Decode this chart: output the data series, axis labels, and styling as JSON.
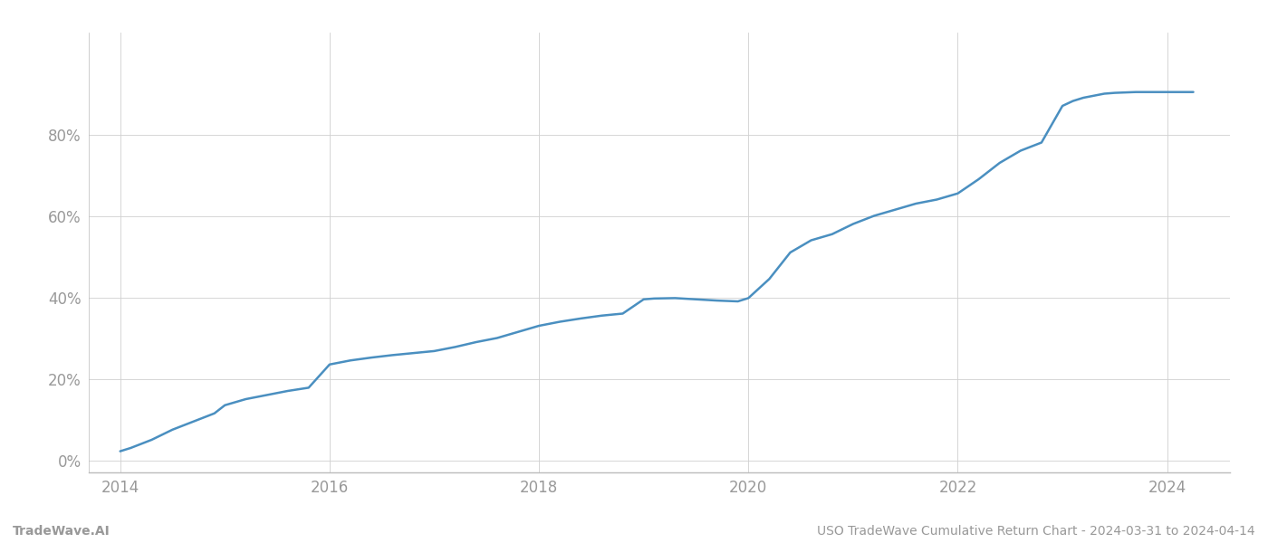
{
  "title": "USO TradeWave Cumulative Return Chart - 2024-03-31 to 2024-04-14",
  "watermark": "TradeWave.AI",
  "line_color": "#4a8fc0",
  "line_width": 1.8,
  "background_color": "#ffffff",
  "grid_color": "#d0d0d0",
  "x_years": [
    2014.0,
    2014.1,
    2014.3,
    2014.5,
    2014.7,
    2014.9,
    2015.0,
    2015.2,
    2015.4,
    2015.6,
    2015.8,
    2016.0,
    2016.2,
    2016.4,
    2016.6,
    2016.8,
    2017.0,
    2017.2,
    2017.4,
    2017.6,
    2017.8,
    2018.0,
    2018.2,
    2018.4,
    2018.6,
    2018.8,
    2019.0,
    2019.1,
    2019.3,
    2019.5,
    2019.7,
    2019.9,
    2020.0,
    2020.2,
    2020.4,
    2020.6,
    2020.8,
    2021.0,
    2021.2,
    2021.4,
    2021.6,
    2021.8,
    2022.0,
    2022.2,
    2022.4,
    2022.6,
    2022.8,
    2023.0,
    2023.1,
    2023.2,
    2023.3,
    2023.4,
    2023.5,
    2023.6,
    2023.7,
    2023.8,
    2023.9,
    2024.0,
    2024.1,
    2024.25
  ],
  "y_values": [
    0.022,
    0.03,
    0.05,
    0.075,
    0.095,
    0.115,
    0.135,
    0.15,
    0.16,
    0.17,
    0.178,
    0.235,
    0.245,
    0.252,
    0.258,
    0.263,
    0.268,
    0.278,
    0.29,
    0.3,
    0.315,
    0.33,
    0.34,
    0.348,
    0.355,
    0.36,
    0.395,
    0.397,
    0.398,
    0.395,
    0.392,
    0.39,
    0.398,
    0.445,
    0.51,
    0.54,
    0.555,
    0.58,
    0.6,
    0.615,
    0.63,
    0.64,
    0.655,
    0.69,
    0.73,
    0.76,
    0.78,
    0.87,
    0.882,
    0.89,
    0.895,
    0.9,
    0.902,
    0.903,
    0.904,
    0.904,
    0.904,
    0.904,
    0.904,
    0.904
  ],
  "xlim": [
    2013.7,
    2024.6
  ],
  "ylim": [
    -0.03,
    1.05
  ],
  "xticks": [
    2014,
    2016,
    2018,
    2020,
    2022,
    2024
  ],
  "yticks": [
    0.0,
    0.2,
    0.4,
    0.6,
    0.8
  ],
  "ytick_labels": [
    "0%",
    "20%",
    "40%",
    "60%",
    "80%"
  ],
  "tick_color": "#999999",
  "tick_fontsize": 12,
  "footer_fontsize": 10,
  "spine_color": "#bbbbbb"
}
